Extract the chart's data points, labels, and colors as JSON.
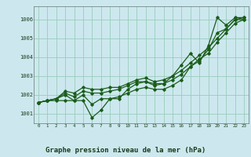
{
  "title": "Graphe pression niveau de la mer (hPa)",
  "bg_color": "#cce8ee",
  "grid_color": "#99ccbb",
  "line_color": "#1a5c1a",
  "xlim": [
    -0.5,
    23.5
  ],
  "ylim": [
    1000.5,
    1006.7
  ],
  "yticks": [
    1001,
    1002,
    1003,
    1004,
    1005,
    1006
  ],
  "xticks": [
    0,
    1,
    2,
    3,
    4,
    5,
    6,
    7,
    8,
    9,
    10,
    11,
    12,
    13,
    14,
    15,
    16,
    17,
    18,
    19,
    20,
    21,
    22,
    23
  ],
  "series": [
    [
      1001.6,
      1001.7,
      1001.7,
      1001.7,
      1001.7,
      1001.7,
      1000.8,
      1001.2,
      1001.8,
      1001.8,
      1002.3,
      1002.6,
      1002.7,
      1002.6,
      1002.6,
      1003.0,
      1003.6,
      1004.2,
      1003.7,
      1004.6,
      1006.1,
      1005.7,
      1006.1,
      1006.1
    ],
    [
      1001.6,
      1001.7,
      1001.8,
      1002.0,
      1001.7,
      1002.0,
      1001.5,
      1001.8,
      1001.8,
      1001.9,
      1002.1,
      1002.3,
      1002.4,
      1002.3,
      1002.3,
      1002.5,
      1002.8,
      1003.5,
      1003.8,
      1004.4,
      1005.3,
      1005.5,
      1006.0,
      1006.0
    ],
    [
      1001.6,
      1001.7,
      1001.8,
      1002.1,
      1001.9,
      1002.2,
      1002.1,
      1002.1,
      1002.2,
      1002.3,
      1002.5,
      1002.7,
      1002.7,
      1002.5,
      1002.6,
      1002.8,
      1003.1,
      1003.5,
      1003.9,
      1004.2,
      1004.8,
      1005.3,
      1005.8,
      1006.0
    ],
    [
      1001.6,
      1001.7,
      1001.8,
      1002.2,
      1002.1,
      1002.4,
      1002.3,
      1002.3,
      1002.4,
      1002.4,
      1002.6,
      1002.8,
      1002.9,
      1002.7,
      1002.8,
      1003.0,
      1003.3,
      1003.7,
      1004.1,
      1004.5,
      1005.0,
      1005.5,
      1006.0,
      1006.1
    ]
  ]
}
